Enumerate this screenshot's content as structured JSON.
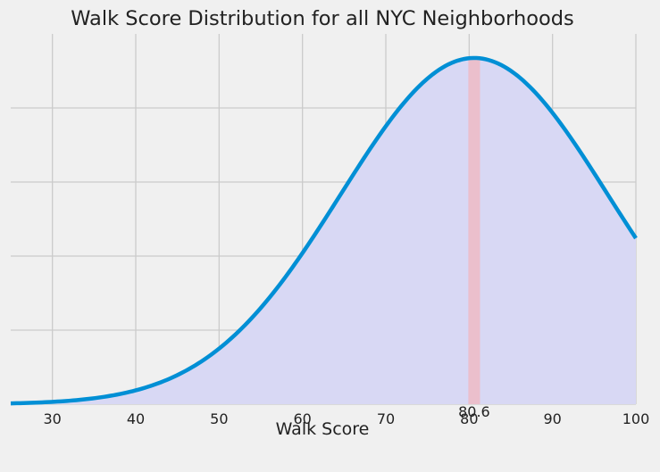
{
  "chart_data": {
    "type": "area",
    "title": "Walk Score Distribution for all NYC Neighborhoods",
    "xlabel": "Walk Score",
    "ylabel": "",
    "xlim": [
      25,
      100
    ],
    "ylim": [
      0,
      1
    ],
    "xticks": [
      30,
      40,
      50,
      60,
      70,
      80,
      90,
      100
    ],
    "x_tick_labels": [
      "30",
      "40",
      "50",
      "60",
      "70",
      "80",
      "90",
      "100"
    ],
    "y_ticks_visible_labels": false,
    "y_gridlines": [
      0.2,
      0.4,
      0.6,
      0.8
    ],
    "grid": true,
    "distribution": {
      "kind": "normal",
      "mean": 80.6,
      "std": 16
    },
    "series": [],
    "highlight_band": {
      "x_from": 79.9,
      "x_to": 81.3
    },
    "annotation": {
      "x": 80.6,
      "text": "80.6"
    },
    "colors": {
      "background": "#f0f0f0",
      "grid": "#cbcbcb",
      "line": "#008fd5",
      "fill": "#d8d8f4",
      "band": "#eebbc4"
    }
  }
}
